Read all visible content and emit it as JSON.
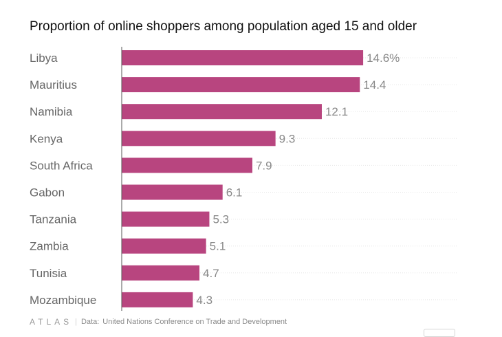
{
  "chart_data": {
    "type": "bar",
    "orientation": "horizontal",
    "title": "Proportion of online shoppers among population aged 15 and older",
    "categories": [
      "Libya",
      "Mauritius",
      "Namibia",
      "Kenya",
      "South Africa",
      "Gabon",
      "Tanzania",
      "Zambia",
      "Tunisia",
      "Mozambique"
    ],
    "values": [
      14.6,
      14.4,
      12.1,
      9.3,
      7.9,
      6.1,
      5.3,
      5.1,
      4.7,
      4.3
    ],
    "value_labels": [
      "14.6%",
      "14.4",
      "12.1",
      "9.3",
      "7.9",
      "6.1",
      "5.3",
      "5.1",
      "4.7",
      "4.3"
    ],
    "xlabel": "",
    "ylabel": "",
    "xlim": [
      0,
      18
    ],
    "bar_color": "#b8457f",
    "grid": true
  },
  "footer": {
    "logo": "ATLAS",
    "separator": "|",
    "source_label": "Data:",
    "source": "United Nations Conference on Trade and Development"
  }
}
